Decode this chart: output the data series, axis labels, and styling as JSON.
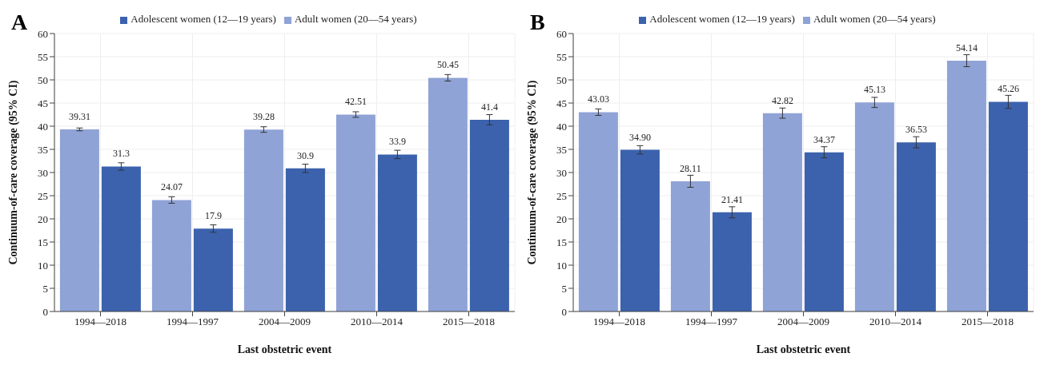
{
  "chart_data": [
    {
      "type": "bar",
      "title": "A",
      "xlabel": "Last obstetric event",
      "ylabel": "Continuum-of-care coverage (95% CI)",
      "categories": [
        "1994—2018",
        "1994—1997",
        "2004—2009",
        "2010—2014",
        "2015—2018"
      ],
      "series": [
        {
          "name": "Adult women (20—54 years)",
          "color": "#8fa3d6",
          "values": [
            39.31,
            24.07,
            39.28,
            42.51,
            50.45
          ],
          "errors": [
            0.3,
            0.7,
            0.6,
            0.6,
            0.7
          ]
        },
        {
          "name": "Adolescent women (12—19 years)",
          "color": "#3c62ad",
          "values": [
            31.3,
            17.9,
            30.9,
            33.9,
            41.4
          ],
          "errors": [
            0.8,
            0.8,
            0.9,
            0.9,
            1.1
          ]
        }
      ],
      "ylim": [
        0,
        60
      ],
      "yticks": [
        0,
        5,
        10,
        15,
        20,
        25,
        30,
        35,
        40,
        45,
        50,
        55,
        60
      ],
      "grid": true,
      "legend": "top",
      "data_labels": true
    },
    {
      "type": "bar",
      "title": "B",
      "xlabel": "Last obstetric event",
      "ylabel": "Continuum-of-care coverage (95% CI)",
      "categories": [
        "1994—2018",
        "1994—1997",
        "2004—2009",
        "2010—2014",
        "2015—2018"
      ],
      "series": [
        {
          "name": "Adult women (20—54 years)",
          "color": "#8fa3d6",
          "values": [
            43.03,
            28.11,
            42.82,
            45.13,
            54.14
          ],
          "errors": [
            0.7,
            1.3,
            1.1,
            1.1,
            1.3
          ],
          "value_labels": [
            "43.03",
            "28.11",
            "42.82",
            "45.13",
            "54.14"
          ]
        },
        {
          "name": "Adolescent women (12—19 years)",
          "color": "#3c62ad",
          "values": [
            34.9,
            21.41,
            34.37,
            36.53,
            45.26
          ],
          "errors": [
            0.9,
            1.2,
            1.2,
            1.2,
            1.4
          ],
          "value_labels": [
            "34.90",
            "21.41",
            "34.37",
            "36.53",
            "45.26"
          ]
        }
      ],
      "ylim": [
        0,
        60
      ],
      "yticks": [
        0,
        5,
        10,
        15,
        20,
        25,
        30,
        35,
        40,
        45,
        50,
        55,
        60
      ],
      "grid": true,
      "legend": "top"
    }
  ]
}
